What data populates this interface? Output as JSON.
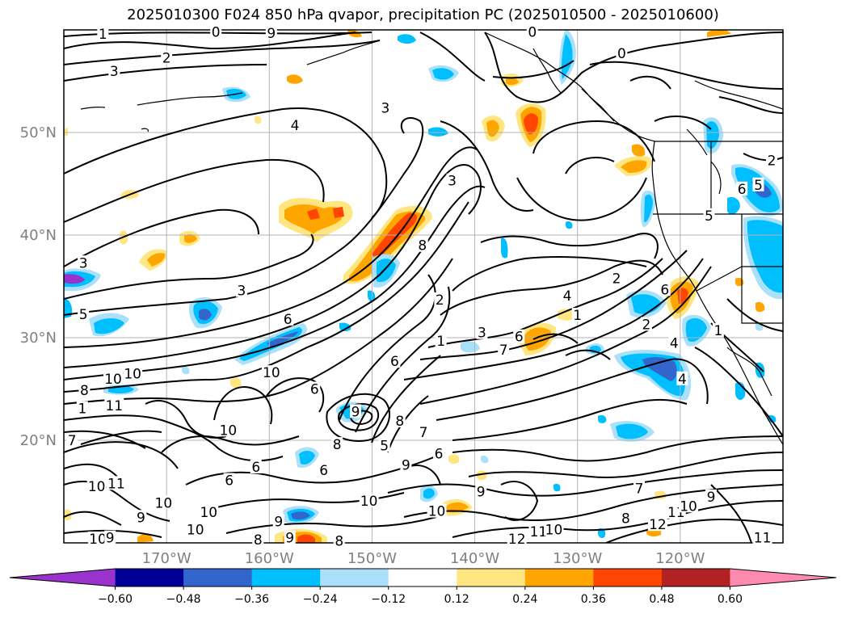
{
  "title": "2025010300 F024 850 hPa qvapor, precipitation PC (2025010500 - 2025010600)",
  "chart_data": {
    "type": "heatmap",
    "title": "2025010300 F024 850 hPa qvapor, precipitation PC (2025010500 - 2025010600)",
    "map": {
      "lon_range": [
        -180,
        -110
      ],
      "lat_range": [
        10,
        60
      ],
      "projection": "PlateCarree",
      "grid": true,
      "coastlines": true
    },
    "x_ticks": [
      {
        "lon": -170,
        "label": "170°W"
      },
      {
        "lon": -160,
        "label": "160°W"
      },
      {
        "lon": -150,
        "label": "150°W"
      },
      {
        "lon": -140,
        "label": "140°W"
      },
      {
        "lon": -130,
        "label": "130°W"
      },
      {
        "lon": -120,
        "label": "120°W"
      }
    ],
    "y_ticks": [
      {
        "lat": 20,
        "label": "20°N"
      },
      {
        "lat": 30,
        "label": "30°N"
      },
      {
        "lat": 40,
        "label": "40°N"
      },
      {
        "lat": 50,
        "label": "50°N"
      }
    ],
    "colorbar": {
      "levels": [
        -0.72,
        -0.6,
        -0.48,
        -0.36,
        -0.24,
        -0.12,
        0.12,
        0.24,
        0.36,
        0.48,
        0.6,
        0.72
      ],
      "tick_labels": [
        "−0.60",
        "−0.48",
        "−0.36",
        "−0.24",
        "−0.12",
        "0.12",
        "0.24",
        "0.36",
        "0.48",
        "0.60"
      ],
      "colors": [
        "#9933cc",
        "#000099",
        "#3366cc",
        "#00bfff",
        "#aae0fa",
        "#ffffff",
        "#ffe680",
        "#ffa500",
        "#ff4500",
        "#b22222",
        "#ff8ab0"
      ],
      "extend": "both"
    },
    "contour_labels": [
      {
        "lon": -176.2,
        "lat": 59.6,
        "text": "1"
      },
      {
        "lon": -165.2,
        "lat": 59.8,
        "text": "0"
      },
      {
        "lon": -159.8,
        "lat": 59.7,
        "text": "9"
      },
      {
        "lon": -170.0,
        "lat": 57.3,
        "text": "2"
      },
      {
        "lon": -175.1,
        "lat": 56.0,
        "text": "3"
      },
      {
        "lon": -157.5,
        "lat": 50.7,
        "text": "4"
      },
      {
        "lon": -134.4,
        "lat": 59.8,
        "text": "0"
      },
      {
        "lon": -125.7,
        "lat": 57.7,
        "text": "0"
      },
      {
        "lon": -148.7,
        "lat": 52.4,
        "text": "3"
      },
      {
        "lon": -142.2,
        "lat": 45.3,
        "text": "3"
      },
      {
        "lon": -111.1,
        "lat": 47.3,
        "text": "2"
      },
      {
        "lon": -114.0,
        "lat": 44.5,
        "text": "6"
      },
      {
        "lon": -112.4,
        "lat": 44.9,
        "text": "5"
      },
      {
        "lon": -178.1,
        "lat": 37.3,
        "text": "3"
      },
      {
        "lon": -162.7,
        "lat": 34.6,
        "text": "3"
      },
      {
        "lon": -145.1,
        "lat": 39.0,
        "text": "8"
      },
      {
        "lon": -117.2,
        "lat": 41.9,
        "text": "5"
      },
      {
        "lon": -178.1,
        "lat": 32.3,
        "text": "5"
      },
      {
        "lon": -158.2,
        "lat": 31.8,
        "text": "6"
      },
      {
        "lon": -143.4,
        "lat": 33.7,
        "text": "2"
      },
      {
        "lon": -143.3,
        "lat": 29.7,
        "text": "1"
      },
      {
        "lon": -131.0,
        "lat": 34.1,
        "text": "4"
      },
      {
        "lon": -130.0,
        "lat": 32.2,
        "text": "1"
      },
      {
        "lon": -126.2,
        "lat": 35.8,
        "text": "2"
      },
      {
        "lon": -121.5,
        "lat": 34.7,
        "text": "6"
      },
      {
        "lon": -123.3,
        "lat": 31.3,
        "text": "2"
      },
      {
        "lon": -120.6,
        "lat": 29.5,
        "text": "4"
      },
      {
        "lon": -139.3,
        "lat": 30.5,
        "text": "3"
      },
      {
        "lon": -135.7,
        "lat": 30.1,
        "text": "6"
      },
      {
        "lon": -137.2,
        "lat": 28.8,
        "text": "7"
      },
      {
        "lon": -116.3,
        "lat": 30.7,
        "text": "1"
      },
      {
        "lon": -119.8,
        "lat": 26.0,
        "text": "4"
      },
      {
        "lon": -178.0,
        "lat": 24.9,
        "text": "8"
      },
      {
        "lon": -175.2,
        "lat": 26.0,
        "text": "10"
      },
      {
        "lon": -178.2,
        "lat": 23.1,
        "text": "1"
      },
      {
        "lon": -175.1,
        "lat": 23.4,
        "text": "11"
      },
      {
        "lon": -159.8,
        "lat": 26.6,
        "text": "10"
      },
      {
        "lon": -155.6,
        "lat": 25.0,
        "text": "6"
      },
      {
        "lon": -147.8,
        "lat": 27.7,
        "text": "6"
      },
      {
        "lon": -151.6,
        "lat": 22.8,
        "text": "9"
      },
      {
        "lon": -147.3,
        "lat": 21.9,
        "text": "8"
      },
      {
        "lon": -145.0,
        "lat": 20.8,
        "text": "7"
      },
      {
        "lon": -164.0,
        "lat": 21.0,
        "text": "10"
      },
      {
        "lon": -179.2,
        "lat": 20.0,
        "text": "7"
      },
      {
        "lon": -161.3,
        "lat": 17.4,
        "text": "6"
      },
      {
        "lon": -153.4,
        "lat": 19.6,
        "text": "8"
      },
      {
        "lon": -148.8,
        "lat": 19.5,
        "text": "5"
      },
      {
        "lon": -143.5,
        "lat": 18.7,
        "text": "6"
      },
      {
        "lon": -146.7,
        "lat": 17.6,
        "text": "9"
      },
      {
        "lon": -154.7,
        "lat": 17.1,
        "text": "6"
      },
      {
        "lon": -163.9,
        "lat": 16.1,
        "text": "6"
      },
      {
        "lon": -176.8,
        "lat": 15.5,
        "text": "10"
      },
      {
        "lon": -174.9,
        "lat": 15.8,
        "text": "11"
      },
      {
        "lon": -170.3,
        "lat": 13.9,
        "text": "10"
      },
      {
        "lon": -172.5,
        "lat": 12.5,
        "text": "9"
      },
      {
        "lon": -165.9,
        "lat": 13.0,
        "text": "10"
      },
      {
        "lon": -167.2,
        "lat": 11.3,
        "text": "10"
      },
      {
        "lon": -176.7,
        "lat": 10.4,
        "text": "10"
      },
      {
        "lon": -175.5,
        "lat": 10.5,
        "text": "9"
      },
      {
        "lon": -161.1,
        "lat": 10.3,
        "text": "8"
      },
      {
        "lon": -159.1,
        "lat": 12.1,
        "text": "9"
      },
      {
        "lon": -158.0,
        "lat": 10.5,
        "text": "9"
      },
      {
        "lon": -153.2,
        "lat": 10.2,
        "text": "8"
      },
      {
        "lon": -150.3,
        "lat": 14.1,
        "text": "10"
      },
      {
        "lon": -143.7,
        "lat": 13.1,
        "text": "10"
      },
      {
        "lon": -139.4,
        "lat": 15.0,
        "text": "9"
      },
      {
        "lon": -133.8,
        "lat": 11.1,
        "text": "11"
      },
      {
        "lon": -132.3,
        "lat": 11.3,
        "text": "10"
      },
      {
        "lon": -135.9,
        "lat": 10.4,
        "text": "12"
      },
      {
        "lon": -125.3,
        "lat": 12.4,
        "text": "8"
      },
      {
        "lon": -122.2,
        "lat": 11.8,
        "text": "12"
      },
      {
        "lon": -120.4,
        "lat": 13.0,
        "text": "11"
      },
      {
        "lon": -119.2,
        "lat": 13.6,
        "text": "10"
      },
      {
        "lon": -117.0,
        "lat": 14.5,
        "text": "9"
      },
      {
        "lon": -124.0,
        "lat": 15.3,
        "text": "7"
      },
      {
        "lon": -112.0,
        "lat": 10.5,
        "text": "11"
      },
      {
        "lon": -173.3,
        "lat": 26.5,
        "text": "10"
      }
    ]
  }
}
